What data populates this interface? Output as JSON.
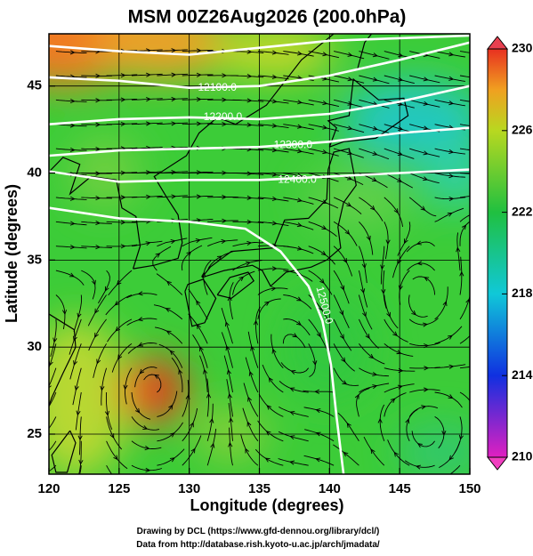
{
  "map": {
    "title": "MSM 00Z26Aug2026 (200.0hPa)",
    "xlabel": "Longitude (degrees)",
    "ylabel": "Latitude  (degrees)",
    "xlim": [
      120,
      150
    ],
    "ylim": [
      22.7,
      48
    ],
    "xticks": [
      120,
      125,
      130,
      135,
      140,
      145,
      150
    ],
    "yticks": [
      25,
      30,
      35,
      40,
      45
    ],
    "grid": true,
    "colorbar": {
      "lim": [
        210,
        230
      ],
      "ticks": [
        210,
        214,
        218,
        222,
        226,
        230
      ]
    },
    "contour_labels": [
      "12100.0",
      "12200.0",
      "12300.0",
      "12400.0",
      "12500.0"
    ],
    "footer": [
      "Drawing by DCL (https://www.gfd-dennou.org/library/dcl/)",
      "Data from http://database.rish.kyoto-u.ac.jp/arch/jmadata/"
    ]
  }
}
